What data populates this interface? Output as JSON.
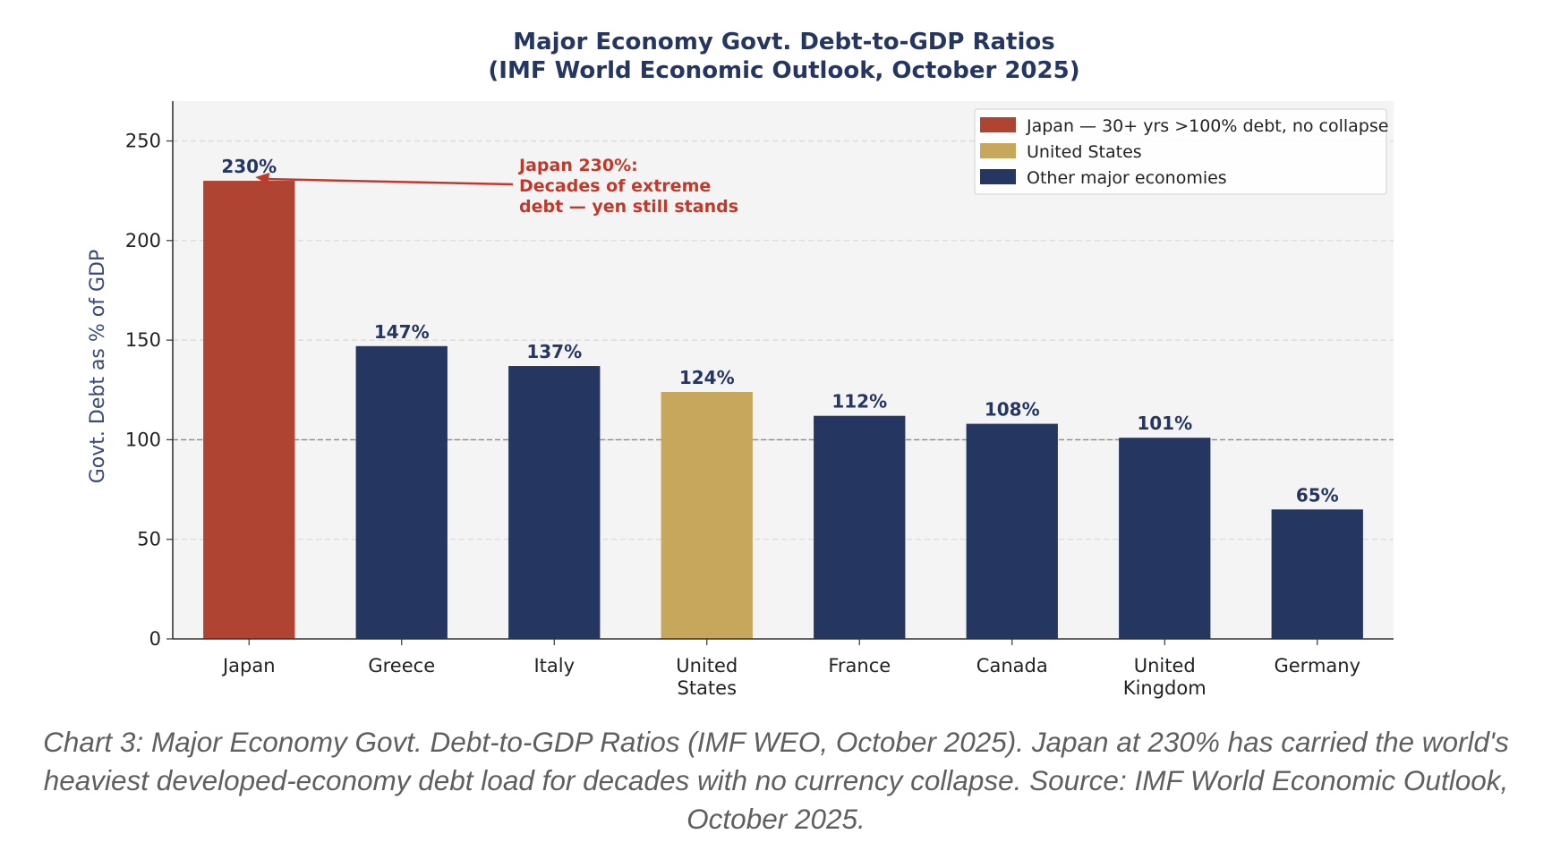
{
  "chart_data": {
    "type": "bar",
    "title": "Major Economy Govt. Debt-to-GDP Ratios",
    "subtitle": "(IMF World Economic Outlook, October 2025)",
    "categories": [
      [
        "Japan"
      ],
      [
        "Greece"
      ],
      [
        "Italy"
      ],
      [
        "United",
        "States"
      ],
      [
        "France"
      ],
      [
        "Canada"
      ],
      [
        "United",
        "Kingdom"
      ],
      [
        "Germany"
      ]
    ],
    "values": [
      230,
      147,
      137,
      124,
      112,
      108,
      101,
      65
    ],
    "value_labels": [
      "230%",
      "147%",
      "137%",
      "124%",
      "112%",
      "108%",
      "101%",
      "65%"
    ],
    "bar_groups": [
      "japan",
      "other",
      "other",
      "us",
      "other",
      "other",
      "other",
      "other"
    ],
    "ylabel": "Govt. Debt as % of GDP",
    "xlabel": "",
    "ylim": [
      0,
      270
    ],
    "yticks": [
      0,
      50,
      100,
      150,
      200,
      250
    ],
    "reference_line": 100,
    "grid": true,
    "legend_position": "top-right",
    "legend": [
      {
        "group": "japan",
        "label": "Japan — 30+ yrs >100% debt, no collapse"
      },
      {
        "group": "us",
        "label": "United States"
      },
      {
        "group": "other",
        "label": "Other major economies"
      }
    ],
    "annotation": {
      "lines": [
        "Japan 230%:",
        "Decades of extreme",
        "debt — yen still stands"
      ],
      "target_category": 0,
      "target_value": 230
    },
    "colors": {
      "japan": "#b04433",
      "us": "#c6a75b",
      "other": "#253660",
      "title": "#253660",
      "annotation": "#c0392b",
      "plot_bg": "#f4f4f4"
    }
  },
  "caption": "Chart 3: Major Economy Govt. Debt-to-GDP Ratios (IMF WEO, October 2025). Japan at 230% has carried the world's heaviest developed-economy debt load for decades with no currency collapse. Source: IMF World Economic Outlook, October 2025."
}
